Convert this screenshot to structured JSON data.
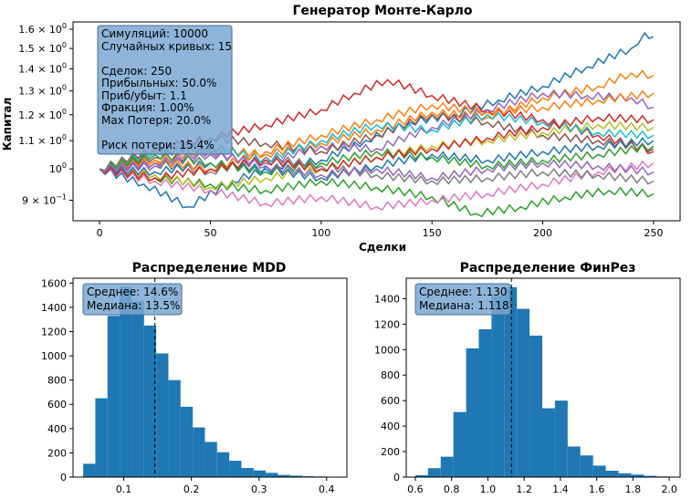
{
  "chart_data": [
    {
      "type": "line",
      "title": "Генератор Монте-Карло",
      "xlabel": "Сделки",
      "ylabel": "Капитал",
      "xlim": [
        -12,
        262
      ],
      "ylim": [
        0.84,
        1.64
      ],
      "y_scale": "log",
      "x_ticks": [
        0,
        50,
        100,
        150,
        200,
        250
      ],
      "y_ticks": [
        {
          "v": 0.9,
          "mant": "9 × 10",
          "exp": "−1"
        },
        {
          "v": 1.0,
          "mant": "10",
          "exp": "0"
        },
        {
          "v": 1.1,
          "mant": "1.1 × 10",
          "exp": "0"
        },
        {
          "v": 1.2,
          "mant": "1.2 × 10",
          "exp": "0"
        },
        {
          "v": 1.3,
          "mant": "1.3 × 10",
          "exp": "0"
        },
        {
          "v": 1.4,
          "mant": "1.4 × 10",
          "exp": "0"
        },
        {
          "v": 1.5,
          "mant": "1.5 × 10",
          "exp": "0"
        },
        {
          "v": 1.6,
          "mant": "1.6 × 10",
          "exp": "0"
        }
      ],
      "series": [
        {
          "name": "c1",
          "color": "#1f77b4",
          "points": [
            [
              0,
              1.0
            ],
            [
              20,
              0.95
            ],
            [
              40,
              0.88
            ],
            [
              60,
              0.96
            ],
            [
              80,
              1.01
            ],
            [
              100,
              1.03
            ],
            [
              120,
              1.1
            ],
            [
              140,
              1.17
            ],
            [
              160,
              1.2
            ],
            [
              180,
              1.26
            ],
            [
              200,
              1.32
            ],
            [
              220,
              1.41
            ],
            [
              240,
              1.5
            ],
            [
              246,
              1.58
            ],
            [
              250,
              1.56
            ]
          ]
        },
        {
          "name": "c2",
          "color": "#ff7f0e",
          "points": [
            [
              0,
              1.0
            ],
            [
              25,
              1.03
            ],
            [
              50,
              1.07
            ],
            [
              75,
              1.05
            ],
            [
              100,
              1.09
            ],
            [
              125,
              1.14
            ],
            [
              150,
              1.21
            ],
            [
              175,
              1.19
            ],
            [
              200,
              1.27
            ],
            [
              225,
              1.32
            ],
            [
              240,
              1.38
            ],
            [
              250,
              1.37
            ]
          ]
        },
        {
          "name": "c3",
          "color": "#2ca02c",
          "points": [
            [
              0,
              1.0
            ],
            [
              25,
              0.97
            ],
            [
              50,
              0.95
            ],
            [
              75,
              0.93
            ],
            [
              100,
              0.96
            ],
            [
              125,
              0.94
            ],
            [
              150,
              0.91
            ],
            [
              170,
              0.86
            ],
            [
              190,
              0.88
            ],
            [
              210,
              0.91
            ],
            [
              230,
              0.93
            ],
            [
              250,
              0.92
            ]
          ]
        },
        {
          "name": "c4",
          "color": "#d62728",
          "points": [
            [
              0,
              1.0
            ],
            [
              25,
              1.07
            ],
            [
              50,
              1.11
            ],
            [
              75,
              1.16
            ],
            [
              100,
              1.22
            ],
            [
              115,
              1.29
            ],
            [
              130,
              1.35
            ],
            [
              150,
              1.28
            ],
            [
              175,
              1.22
            ],
            [
              200,
              1.18
            ],
            [
              225,
              1.12
            ],
            [
              250,
              1.06
            ]
          ]
        },
        {
          "name": "c5",
          "color": "#9467bd",
          "points": [
            [
              0,
              1.0
            ],
            [
              25,
              1.01
            ],
            [
              50,
              1.05
            ],
            [
              75,
              1.02
            ],
            [
              100,
              1.08
            ],
            [
              125,
              1.07
            ],
            [
              150,
              1.15
            ],
            [
              175,
              1.22
            ],
            [
              200,
              1.29
            ],
            [
              220,
              1.28
            ],
            [
              240,
              1.27
            ],
            [
              250,
              1.23
            ]
          ]
        },
        {
          "name": "c6",
          "color": "#8c564b",
          "points": [
            [
              0,
              1.0
            ],
            [
              25,
              1.04
            ],
            [
              50,
              1.11
            ],
            [
              75,
              1.09
            ],
            [
              100,
              1.06
            ],
            [
              125,
              1.12
            ],
            [
              150,
              1.2
            ],
            [
              175,
              1.17
            ],
            [
              200,
              1.12
            ],
            [
              225,
              1.1
            ],
            [
              250,
              1.07
            ]
          ]
        },
        {
          "name": "c7",
          "color": "#e377c2",
          "points": [
            [
              0,
              1.0
            ],
            [
              25,
              0.96
            ],
            [
              50,
              0.93
            ],
            [
              75,
              0.89
            ],
            [
              100,
              0.91
            ],
            [
              125,
              0.88
            ],
            [
              150,
              0.9
            ],
            [
              175,
              0.92
            ],
            [
              200,
              0.95
            ],
            [
              225,
              0.99
            ],
            [
              250,
              1.02
            ]
          ]
        },
        {
          "name": "c8",
          "color": "#7f7f7f",
          "points": [
            [
              0,
              1.0
            ],
            [
              25,
              1.02
            ],
            [
              50,
              0.99
            ],
            [
              75,
              1.04
            ],
            [
              100,
              1.01
            ],
            [
              125,
              0.98
            ],
            [
              150,
              0.96
            ],
            [
              175,
              0.97
            ],
            [
              200,
              0.99
            ],
            [
              225,
              0.98
            ],
            [
              250,
              0.96
            ]
          ]
        },
        {
          "name": "c9",
          "color": "#bcbd22",
          "points": [
            [
              0,
              1.0
            ],
            [
              25,
              0.98
            ],
            [
              50,
              0.94
            ],
            [
              75,
              0.97
            ],
            [
              100,
              1.0
            ],
            [
              125,
              1.04
            ],
            [
              150,
              1.08
            ],
            [
              175,
              1.1
            ],
            [
              200,
              1.13
            ],
            [
              225,
              1.16
            ],
            [
              250,
              1.15
            ]
          ]
        },
        {
          "name": "c10",
          "color": "#17becf",
          "points": [
            [
              0,
              1.0
            ],
            [
              25,
              1.06
            ],
            [
              50,
              1.08
            ],
            [
              75,
              1.03
            ],
            [
              100,
              1.1
            ],
            [
              125,
              1.16
            ],
            [
              150,
              1.14
            ],
            [
              175,
              1.2
            ],
            [
              200,
              1.17
            ],
            [
              225,
              1.13
            ],
            [
              250,
              1.12
            ]
          ]
        },
        {
          "name": "c11",
          "color": "#1f77b4",
          "points": [
            [
              0,
              1.0
            ],
            [
              25,
              0.99
            ],
            [
              50,
              1.02
            ],
            [
              75,
              1.0
            ],
            [
              100,
              0.97
            ],
            [
              125,
              1.01
            ],
            [
              150,
              1.05
            ],
            [
              175,
              1.03
            ],
            [
              200,
              1.06
            ],
            [
              225,
              1.08
            ],
            [
              250,
              1.1
            ]
          ]
        },
        {
          "name": "c12",
          "color": "#ff7f0e",
          "points": [
            [
              0,
              1.0
            ],
            [
              25,
              1.03
            ],
            [
              50,
              1.0
            ],
            [
              75,
              1.06
            ],
            [
              100,
              1.12
            ],
            [
              125,
              1.18
            ],
            [
              150,
              1.24
            ],
            [
              175,
              1.21
            ],
            [
              200,
              1.23
            ],
            [
              225,
              1.26
            ],
            [
              250,
              1.29
            ]
          ]
        },
        {
          "name": "c13",
          "color": "#2ca02c",
          "points": [
            [
              0,
              1.0
            ],
            [
              25,
              1.05
            ],
            [
              50,
              1.02
            ],
            [
              75,
              0.99
            ],
            [
              100,
              1.02
            ],
            [
              125,
              1.06
            ],
            [
              150,
              1.04
            ],
            [
              175,
              1.01
            ],
            [
              200,
              1.03
            ],
            [
              225,
              1.05
            ],
            [
              250,
              1.08
            ]
          ]
        },
        {
          "name": "c14",
          "color": "#d62728",
          "points": [
            [
              0,
              1.0
            ],
            [
              25,
              0.97
            ],
            [
              50,
              1.0
            ],
            [
              75,
              1.03
            ],
            [
              100,
              1.0
            ],
            [
              125,
              1.04
            ],
            [
              150,
              1.07
            ],
            [
              175,
              1.11
            ],
            [
              200,
              1.15
            ],
            [
              225,
              1.19
            ],
            [
              250,
              1.18
            ]
          ]
        },
        {
          "name": "c15",
          "color": "#9467bd",
          "points": [
            [
              0,
              1.0
            ],
            [
              25,
              1.02
            ],
            [
              50,
              1.06
            ],
            [
              75,
              1.01
            ],
            [
              100,
              0.98
            ],
            [
              125,
              1.0
            ],
            [
              150,
              0.97
            ],
            [
              175,
              1.0
            ],
            [
              200,
              1.02
            ],
            [
              225,
              1.01
            ],
            [
              250,
              0.99
            ]
          ]
        }
      ],
      "info_lines": [
        "Симуляций: 10000",
        "Случайных кривых: 15",
        "",
        "Сделок: 250",
        "Прибыльных: 50.0%",
        "Приб/убыт: 1.1",
        "Фракция: 1.00%",
        "Max Потеря: 20.0%",
        "",
        "Риск потери: 15.4%"
      ],
      "info_box_color": "#7aa8d2"
    },
    {
      "type": "bar",
      "title": "Распределение MDD",
      "xlim": [
        0.025,
        0.43
      ],
      "ylim": [
        0,
        1640
      ],
      "x_ticks": [
        0.1,
        0.2,
        0.3,
        0.4
      ],
      "y_ticks": [
        0,
        200,
        400,
        600,
        800,
        1000,
        1200,
        1400,
        1600
      ],
      "bin_edges": [
        0.04,
        0.058,
        0.076,
        0.094,
        0.112,
        0.13,
        0.148,
        0.166,
        0.184,
        0.202,
        0.22,
        0.238,
        0.256,
        0.274,
        0.292,
        0.31,
        0.328,
        0.346,
        0.364,
        0.382,
        0.4
      ],
      "values": [
        110,
        650,
        1330,
        1570,
        1450,
        1250,
        1020,
        800,
        580,
        410,
        290,
        205,
        135,
        75,
        55,
        35,
        18,
        12,
        7,
        5
      ],
      "bar_color": "#1f77b4",
      "vline": 0.146,
      "info_lines": [
        "Среднее: 14.6%",
        "Медиана: 13.5%"
      ],
      "info_box_color": "#7aa8d2"
    },
    {
      "type": "bar",
      "title": "Распределение ФинРез",
      "xlim": [
        0.55,
        2.06
      ],
      "ylim": [
        0,
        1560
      ],
      "x_ticks": [
        0.6,
        0.8,
        1.0,
        1.2,
        1.4,
        1.6,
        1.8,
        2.0
      ],
      "x_tick_labels": [
        "0.6",
        "0.8",
        "1.0",
        "1.2",
        "1.4",
        "1.6",
        "1.8",
        "2.0"
      ],
      "y_ticks": [
        0,
        200,
        400,
        600,
        800,
        1000,
        1200,
        1400
      ],
      "bin_edges": [
        0.6,
        0.67,
        0.74,
        0.81,
        0.88,
        0.95,
        1.02,
        1.09,
        1.16,
        1.23,
        1.3,
        1.37,
        1.44,
        1.51,
        1.58,
        1.65,
        1.72,
        1.79,
        1.86,
        1.93,
        2.0
      ],
      "values": [
        15,
        70,
        160,
        510,
        1010,
        1160,
        1420,
        1490,
        1320,
        1110,
        540,
        600,
        240,
        170,
        90,
        50,
        30,
        20,
        10,
        5
      ],
      "bar_color": "#1f77b4",
      "vline": 1.13,
      "info_lines": [
        "Среднее: 1.130",
        "Медиана: 1.118"
      ],
      "info_box_color": "#7aa8d2"
    }
  ]
}
